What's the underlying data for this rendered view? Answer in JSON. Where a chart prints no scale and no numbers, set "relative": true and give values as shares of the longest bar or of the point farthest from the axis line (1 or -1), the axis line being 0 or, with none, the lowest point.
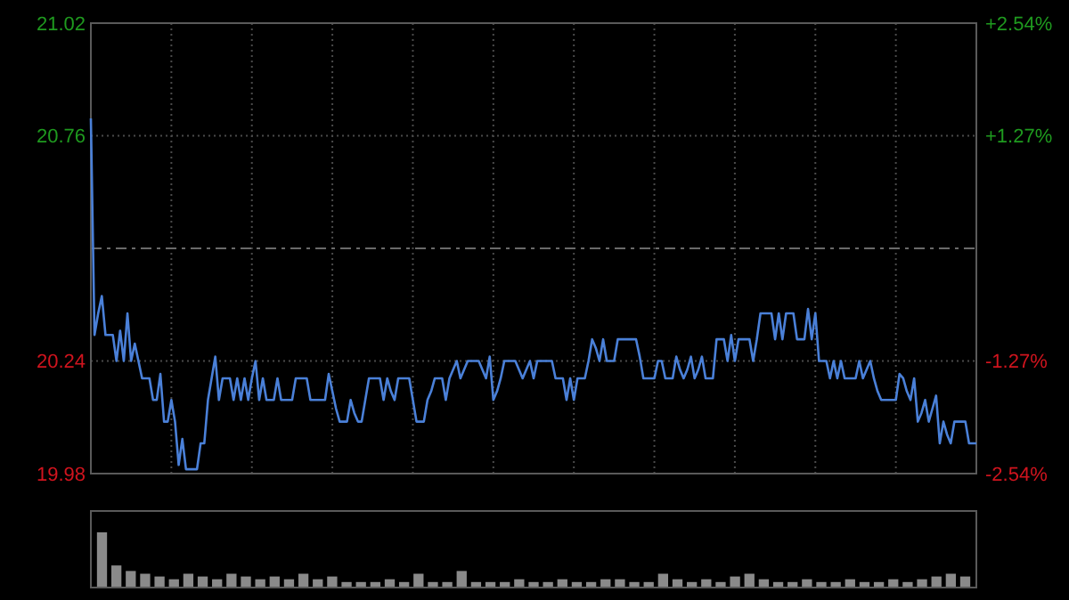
{
  "chart_data": [
    {
      "type": "line",
      "categories": [
        null,
        null,
        null,
        null,
        null,
        null,
        null,
        null,
        null,
        null,
        null,
        null,
        null,
        null,
        null,
        null,
        null,
        null,
        null,
        null,
        null,
        null,
        null,
        null,
        null,
        null,
        null,
        null,
        null,
        null,
        null,
        null,
        null,
        null,
        null,
        null,
        null,
        null,
        null,
        null,
        null,
        null,
        null,
        null,
        null,
        null,
        null,
        null,
        null,
        null,
        null,
        null,
        null,
        null,
        null,
        null,
        null,
        null,
        null,
        null,
        null,
        null,
        null,
        null,
        null,
        null,
        null,
        null,
        null,
        null,
        null,
        null,
        null,
        null,
        null,
        null,
        null,
        null,
        null,
        null,
        null,
        null,
        null,
        null,
        null,
        null,
        null,
        null,
        null,
        null,
        null,
        null,
        null,
        null,
        null,
        null,
        null,
        null,
        null,
        null,
        null,
        null,
        null,
        null,
        null,
        null,
        null,
        null,
        null,
        null,
        null,
        null,
        null,
        null,
        null,
        null,
        null,
        null,
        null,
        null,
        null,
        null,
        null,
        null,
        null,
        null,
        null,
        null,
        null,
        null,
        null,
        null,
        null,
        null,
        null,
        null,
        null,
        null,
        null,
        null,
        null,
        null,
        null,
        null,
        null,
        null,
        null,
        null,
        null,
        null,
        null,
        null,
        null,
        null,
        null,
        null,
        null,
        null,
        null,
        null,
        null,
        null,
        null,
        null,
        null,
        null,
        null,
        null,
        null,
        null,
        null,
        null,
        null,
        null,
        null,
        null,
        null,
        null,
        null,
        null,
        null,
        null,
        null,
        null,
        null,
        null,
        null,
        null,
        null,
        null,
        null,
        null,
        null,
        null,
        null,
        null,
        null,
        null,
        null,
        null,
        null,
        null,
        null,
        null,
        null,
        null,
        null,
        null,
        null,
        null,
        null,
        null,
        null,
        null,
        null,
        null,
        null,
        null,
        null,
        null,
        null,
        null,
        null,
        null,
        null,
        null,
        null,
        null,
        null,
        null,
        null,
        null,
        null,
        null,
        null,
        null,
        null,
        null,
        null,
        null,
        null,
        null,
        null
      ],
      "series": [
        {
          "color": "#4a80d8",
          "values": [
            20.8,
            20.3,
            20.35,
            20.39,
            20.3,
            20.3,
            20.3,
            20.24,
            20.31,
            20.24,
            20.35,
            20.24,
            20.28,
            20.24,
            20.2,
            20.2,
            20.2,
            20.15,
            20.15,
            20.21,
            20.1,
            20.1,
            20.15,
            20.1,
            20.0,
            20.06,
            19.99,
            19.99,
            19.99,
            19.99,
            20.05,
            20.05,
            20.15,
            20.2,
            20.25,
            20.15,
            20.2,
            20.2,
            20.2,
            20.15,
            20.2,
            20.15,
            20.2,
            20.15,
            20.2,
            20.24,
            20.15,
            20.2,
            20.15,
            20.15,
            20.15,
            20.2,
            20.15,
            20.15,
            20.15,
            20.15,
            20.2,
            20.2,
            20.2,
            20.2,
            20.15,
            20.15,
            20.15,
            20.15,
            20.15,
            20.21,
            20.17,
            20.13,
            20.1,
            20.1,
            20.1,
            20.15,
            20.12,
            20.1,
            20.1,
            20.15,
            20.2,
            20.2,
            20.2,
            20.2,
            20.15,
            20.2,
            20.17,
            20.15,
            20.2,
            20.2,
            20.2,
            20.2,
            20.15,
            20.1,
            20.1,
            20.1,
            20.15,
            20.17,
            20.2,
            20.2,
            20.2,
            20.15,
            20.2,
            20.22,
            20.24,
            20.2,
            20.22,
            20.24,
            20.24,
            20.24,
            20.24,
            20.22,
            20.2,
            20.25,
            20.15,
            20.17,
            20.2,
            20.24,
            20.24,
            20.24,
            20.24,
            20.22,
            20.2,
            20.22,
            20.24,
            20.2,
            20.24,
            20.24,
            20.24,
            20.24,
            20.24,
            20.2,
            20.2,
            20.2,
            20.15,
            20.2,
            20.15,
            20.2,
            20.2,
            20.2,
            20.24,
            20.29,
            20.27,
            20.24,
            20.29,
            20.24,
            20.24,
            20.24,
            20.29,
            20.29,
            20.29,
            20.29,
            20.29,
            20.29,
            20.25,
            20.2,
            20.2,
            20.2,
            20.2,
            20.24,
            20.24,
            20.2,
            20.2,
            20.2,
            20.25,
            20.22,
            20.2,
            20.22,
            20.25,
            20.2,
            20.22,
            20.25,
            20.2,
            20.2,
            20.2,
            20.29,
            20.29,
            20.29,
            20.24,
            20.3,
            20.24,
            20.29,
            20.29,
            20.29,
            20.29,
            20.24,
            20.29,
            20.35,
            20.35,
            20.35,
            20.35,
            20.29,
            20.35,
            20.29,
            20.35,
            20.35,
            20.35,
            20.29,
            20.29,
            20.29,
            20.36,
            20.29,
            20.35,
            20.24,
            20.24,
            20.24,
            20.2,
            20.24,
            20.2,
            20.24,
            20.2,
            20.2,
            20.2,
            20.2,
            20.24,
            20.2,
            20.22,
            20.24,
            20.2,
            20.17,
            20.15,
            20.15,
            20.15,
            20.15,
            20.15,
            20.21,
            20.2,
            20.17,
            20.15,
            20.2,
            20.1,
            20.12,
            20.15,
            20.1,
            20.13,
            20.16,
            20.05,
            20.1,
            20.07,
            20.05,
            20.1,
            20.1,
            20.1,
            20.1,
            20.05,
            20.05,
            20.05
          ]
        }
      ],
      "ylim": [
        19.98,
        21.02
      ],
      "yticks": [
        19.98,
        20.24,
        20.76,
        21.02
      ],
      "y2lim": [
        -2.54,
        2.54
      ],
      "y2ticks": [
        {
          "value": -2.54,
          "label": "-2.54%"
        },
        {
          "value": -1.27,
          "label": "-1.27%"
        },
        {
          "value": 1.27,
          "label": "+1.27%"
        },
        {
          "value": 2.54,
          "label": "+2.54%"
        }
      ],
      "ref_lines": [
        {
          "axis": "y",
          "value": 20.5,
          "line_style": "dashed"
        }
      ],
      "grid": true
    },
    {
      "type": "bar",
      "relative": true,
      "color": "#8a8a8a",
      "categories": [
        null,
        null,
        null,
        null,
        null,
        null,
        null,
        null,
        null,
        null,
        null,
        null,
        null,
        null,
        null,
        null,
        null,
        null,
        null,
        null,
        null,
        null,
        null,
        null,
        null,
        null,
        null,
        null,
        null,
        null,
        null,
        null,
        null,
        null,
        null,
        null,
        null,
        null,
        null,
        null,
        null,
        null,
        null,
        null,
        null,
        null,
        null,
        null,
        null,
        null,
        null,
        null,
        null,
        null,
        null,
        null,
        null,
        null,
        null,
        null,
        null
      ],
      "values": [
        1,
        0.4,
        0.3,
        0.25,
        0.2,
        0.15,
        0.25,
        0.2,
        0.15,
        0.25,
        0.2,
        0.15,
        0.2,
        0.15,
        0.25,
        0.15,
        0.2,
        0.1,
        0.1,
        0.1,
        0.15,
        0.1,
        0.25,
        0.1,
        0.1,
        0.3,
        0.1,
        0.1,
        0.1,
        0.15,
        0.1,
        0.1,
        0.15,
        0.1,
        0.1,
        0.15,
        0.15,
        0.1,
        0.1,
        0.25,
        0.15,
        0.1,
        0.15,
        0.1,
        0.2,
        0.25,
        0.15,
        0.1,
        0.1,
        0.15,
        0.1,
        0.1,
        0.15,
        0.1,
        0.1,
        0.15,
        0.1,
        0.15,
        0.2,
        0.25,
        0.2
      ]
    }
  ]
}
